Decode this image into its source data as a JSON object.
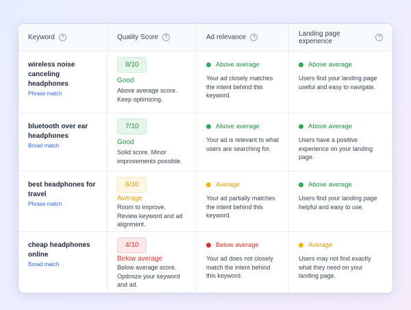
{
  "colors": {
    "good_bg": "#e7f6ea",
    "good_border": "#cfead5",
    "good_text": "#1e8e3e",
    "avg_bg": "#fdf6e3",
    "avg_border": "#f6e7bd",
    "avg_text": "#d99a00",
    "bad_bg": "#fde8e8",
    "bad_border": "#f7cfcf",
    "bad_text": "#d93025",
    "green_dot": "#34a853",
    "yellow_dot": "#f2b705",
    "red_dot": "#d93025"
  },
  "headers": {
    "keyword": "Keyword",
    "quality_score": "Quality Score",
    "ad_relevance": "Ad relevance",
    "landing_page": "Landing page experience",
    "help_icon": "?"
  },
  "rows": [
    {
      "keyword": "wireless noise canceling headphones",
      "match": "Phrase match",
      "score": "8/10",
      "score_label": "Good",
      "score_tone": "good",
      "score_desc": "Above average score. Keep optimizing.",
      "ad_status": "Above average",
      "ad_tone": "green",
      "ad_desc": "Your ad closely matches the intent behind this keyword.",
      "lp_status": "Above average",
      "lp_tone": "green",
      "lp_desc": "Users find your landing page useful and easy to navigate."
    },
    {
      "keyword": "bluetooth over ear headphones",
      "match": "Broad match",
      "score": "7/10",
      "score_label": "Good",
      "score_tone": "good",
      "score_desc": "Solid score. Minor improvements possible.",
      "ad_status": "Above average",
      "ad_tone": "green",
      "ad_desc": "Your ad is relevant to what users are searching for.",
      "lp_status": "Above average",
      "lp_tone": "green",
      "lp_desc": "Users have a positive experience on your landing page."
    },
    {
      "keyword": "best headphones for travel",
      "match": "Phrase match",
      "score": "6/10",
      "score_label": "Average",
      "score_tone": "avg",
      "score_desc": "Room to improve. Review keyword and ad alignment.",
      "ad_status": "Average",
      "ad_tone": "yellow",
      "ad_desc": "Your ad partially matches the intent behind this keyword.",
      "lp_status": "Above average",
      "lp_tone": "green",
      "lp_desc": "Users find your landing page helpful and easy to use."
    },
    {
      "keyword": "cheap headphones online",
      "match": "Broad match",
      "score": "4/10",
      "score_label": "Below average",
      "score_tone": "bad",
      "score_desc": "Below average score. Optimize your keyword and ad.",
      "ad_status": "Below average",
      "ad_tone": "red",
      "ad_desc": "Your ad does not closely match the intent behind this keyword.",
      "lp_status": "Average",
      "lp_tone": "yellow",
      "lp_desc": "Users may not find exactly what they need on your landing page."
    }
  ]
}
